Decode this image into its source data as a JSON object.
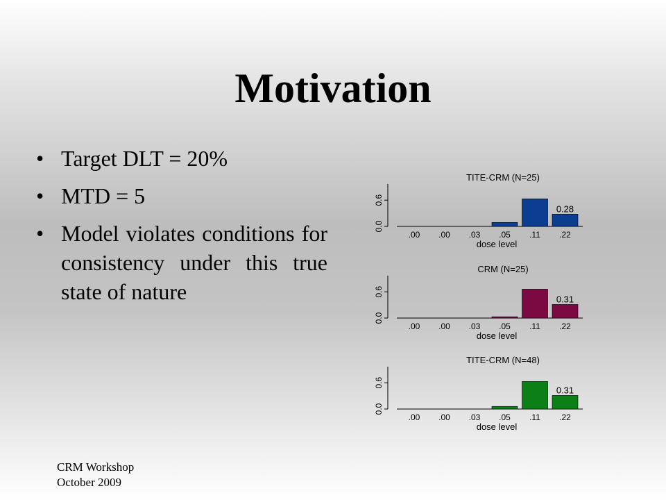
{
  "slide": {
    "title": "Motivation",
    "bullets": [
      "Target DLT = 20%",
      "MTD = 5",
      "Model violates conditions for consistency under this true state of nature"
    ],
    "footer": [
      "CRM Workshop",
      "October 2009"
    ]
  },
  "chart_data": [
    {
      "type": "bar",
      "title": "TITE-CRM (N=25)",
      "xlabel": "dose level",
      "ylabel": "",
      "categories": [
        ".00",
        ".00",
        ".03",
        ".05",
        ".11",
        ".22"
      ],
      "values": [
        0,
        0,
        0,
        0.09,
        0.63,
        0.28
      ],
      "yticks": [
        "0.0",
        "0.6"
      ],
      "ylim": [
        0,
        1
      ],
      "annotation": "0.28",
      "color": "#0b3d91"
    },
    {
      "type": "bar",
      "title": "CRM (N=25)",
      "xlabel": "dose level",
      "ylabel": "",
      "categories": [
        ".00",
        ".00",
        ".03",
        ".05",
        ".11",
        ".22"
      ],
      "values": [
        0,
        0,
        0,
        0.03,
        0.66,
        0.31
      ],
      "yticks": [
        "0.0",
        "0.6"
      ],
      "ylim": [
        0,
        1
      ],
      "annotation": "0.31",
      "color": "#7b0a42"
    },
    {
      "type": "bar",
      "title": "TITE-CRM (N=48)",
      "xlabel": "dose level",
      "ylabel": "",
      "categories": [
        ".00",
        ".00",
        ".03",
        ".05",
        ".11",
        ".22"
      ],
      "values": [
        0,
        0,
        0,
        0.06,
        0.63,
        0.31
      ],
      "yticks": [
        "0.0",
        "0.6"
      ],
      "ylim": [
        0,
        1
      ],
      "annotation": "0.31",
      "color": "#0a8016"
    }
  ]
}
